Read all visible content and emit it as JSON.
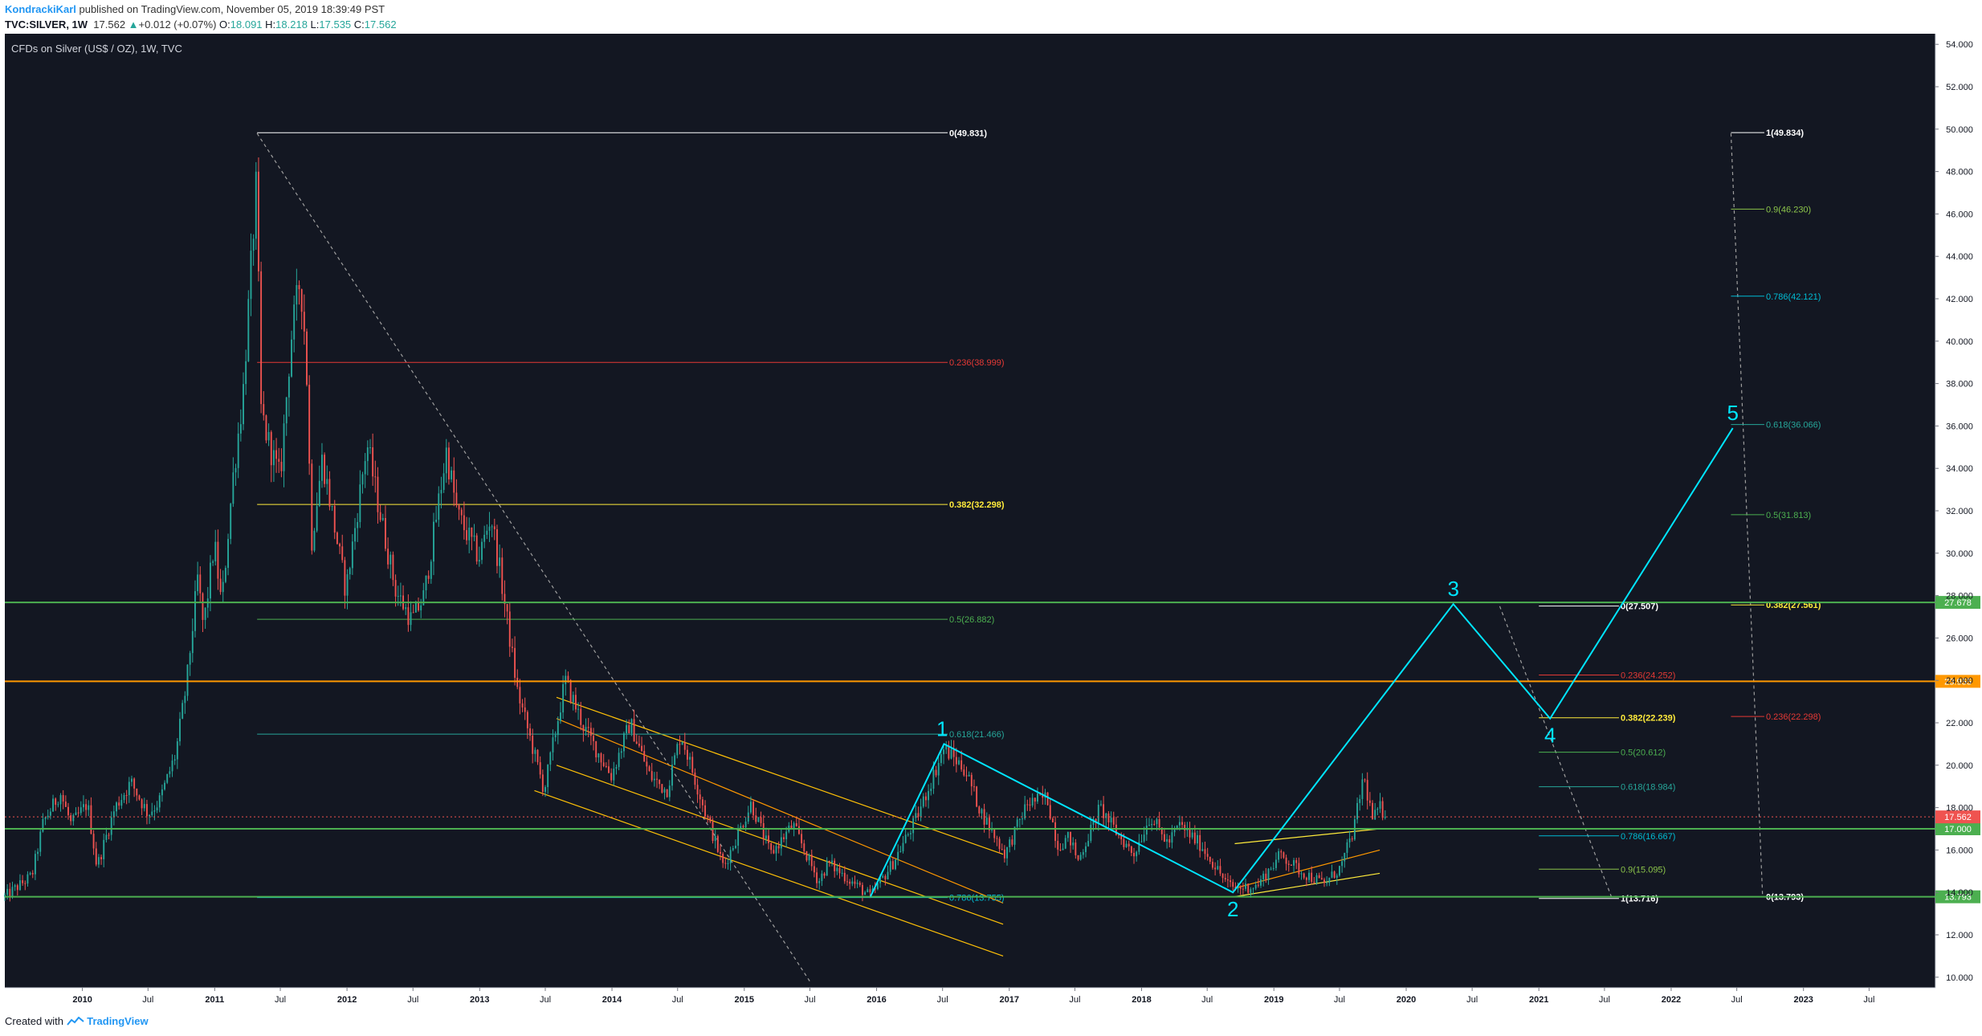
{
  "header": {
    "author": "KondrackiKarl",
    "published_text": " published on TradingView.com, November 05, 2019 18:39:49 PST",
    "symbol": "TVC:SILVER, 1W",
    "last": "17.562",
    "change_arrow": "▲",
    "change": "+0.012 (+0.07%)",
    "o_label": "O:",
    "o_value": "18.091",
    "h_label": "H:",
    "h_value": "18.218",
    "l_label": "L:",
    "l_value": "17.535",
    "c_label": "C:",
    "c_value": "17.562"
  },
  "footer": {
    "created_with": "Created with",
    "brand": "TradingView"
  },
  "colors": {
    "background": "#131722",
    "up": "#26a69a",
    "down": "#ef5350",
    "wave": "#00e5ff",
    "green_level": "#4caf50",
    "orange_level": "#ff9800",
    "yellow": "#ffeb3b",
    "white": "#ffffff"
  },
  "chart_data": {
    "type": "candlestick",
    "title": "CFDs on Silver (US$ / OZ), 1W, TVC",
    "x_axis": {
      "type": "date",
      "range": [
        "2009-06-01",
        "2023-12-31"
      ],
      "ticks": [
        {
          "label": "2010",
          "date": "2010-01-01"
        },
        {
          "label": "Jul",
          "date": "2010-07-01"
        },
        {
          "label": "2011",
          "date": "2011-01-01"
        },
        {
          "label": "Jul",
          "date": "2011-07-01"
        },
        {
          "label": "2012",
          "date": "2012-01-01"
        },
        {
          "label": "Jul",
          "date": "2012-07-01"
        },
        {
          "label": "2013",
          "date": "2013-01-01"
        },
        {
          "label": "Jul",
          "date": "2013-07-01"
        },
        {
          "label": "2014",
          "date": "2014-01-01"
        },
        {
          "label": "Jul",
          "date": "2014-07-01"
        },
        {
          "label": "2015",
          "date": "2015-01-01"
        },
        {
          "label": "Jul",
          "date": "2015-07-01"
        },
        {
          "label": "2016",
          "date": "2016-01-01"
        },
        {
          "label": "Jul",
          "date": "2016-07-01"
        },
        {
          "label": "2017",
          "date": "2017-01-01"
        },
        {
          "label": "Jul",
          "date": "2017-07-01"
        },
        {
          "label": "2018",
          "date": "2018-01-01"
        },
        {
          "label": "Jul",
          "date": "2018-07-01"
        },
        {
          "label": "2019",
          "date": "2019-01-01"
        },
        {
          "label": "Jul",
          "date": "2019-07-01"
        },
        {
          "label": "2020",
          "date": "2020-01-01"
        },
        {
          "label": "Jul",
          "date": "2020-07-01"
        },
        {
          "label": "2021",
          "date": "2021-01-01"
        },
        {
          "label": "Jul",
          "date": "2021-07-01"
        },
        {
          "label": "2022",
          "date": "2022-01-01"
        },
        {
          "label": "Jul",
          "date": "2022-07-01"
        },
        {
          "label": "2023",
          "date": "2023-01-01"
        },
        {
          "label": "Jul",
          "date": "2023-07-01"
        }
      ]
    },
    "y_axis": {
      "range": [
        9.5,
        54.5
      ],
      "ticks": [
        "54.000",
        "52.000",
        "50.000",
        "48.000",
        "46.000",
        "44.000",
        "42.000",
        "40.000",
        "38.000",
        "36.000",
        "34.000",
        "32.000",
        "30.000",
        "28.000",
        "26.000",
        "24.000",
        "22.000",
        "20.000",
        "18.000",
        "16.000",
        "14.000",
        "12.000",
        "10.000"
      ]
    },
    "price_path": [
      [
        "2009-06-01",
        13.8
      ],
      [
        "2009-08-15",
        14.8
      ],
      [
        "2009-09-15",
        17.3
      ],
      [
        "2009-11-01",
        18.7
      ],
      [
        "2009-12-01",
        17.2
      ],
      [
        "2010-01-15",
        18.2
      ],
      [
        "2010-02-10",
        15.2
      ],
      [
        "2010-04-01",
        18.0
      ],
      [
        "2010-05-15",
        19.2
      ],
      [
        "2010-07-01",
        17.7
      ],
      [
        "2010-08-01",
        18.3
      ],
      [
        "2010-09-15",
        20.5
      ],
      [
        "2010-10-15",
        23.8
      ],
      [
        "2010-11-15",
        28.8
      ],
      [
        "2010-12-01",
        26.5
      ],
      [
        "2010-12-31",
        30.5
      ],
      [
        "2011-01-20",
        27.5
      ],
      [
        "2011-02-20",
        33.5
      ],
      [
        "2011-03-20",
        37.5
      ],
      [
        "2011-04-28",
        48.0
      ],
      [
        "2011-05-06",
        37.0
      ],
      [
        "2011-05-25",
        35.5
      ],
      [
        "2011-06-30",
        33.5
      ],
      [
        "2011-07-30",
        40.0
      ],
      [
        "2011-08-25",
        43.0
      ],
      [
        "2011-09-10",
        39.5
      ],
      [
        "2011-09-25",
        30.5
      ],
      [
        "2011-10-25",
        34.5
      ],
      [
        "2011-12-29",
        28.2
      ],
      [
        "2012-02-25",
        35.2
      ],
      [
        "2012-03-25",
        32.5
      ],
      [
        "2012-05-15",
        28.2
      ],
      [
        "2012-06-28",
        26.8
      ],
      [
        "2012-08-01",
        28.0
      ],
      [
        "2012-10-01",
        34.8
      ],
      [
        "2012-11-01",
        31.8
      ],
      [
        "2012-12-30",
        29.8
      ],
      [
        "2013-02-01",
        31.8
      ],
      [
        "2013-03-01",
        28.8
      ],
      [
        "2013-04-15",
        23.5
      ],
      [
        "2013-06-28",
        18.8
      ],
      [
        "2013-08-25",
        24.0
      ],
      [
        "2013-10-15",
        21.8
      ],
      [
        "2013-12-30",
        19.5
      ],
      [
        "2014-02-20",
        22.0
      ],
      [
        "2014-04-15",
        19.5
      ],
      [
        "2014-06-01",
        18.8
      ],
      [
        "2014-07-10",
        21.5
      ],
      [
        "2014-09-15",
        17.8
      ],
      [
        "2014-11-05",
        15.2
      ],
      [
        "2015-01-20",
        18.2
      ],
      [
        "2015-03-15",
        15.8
      ],
      [
        "2015-05-15",
        17.2
      ],
      [
        "2015-07-25",
        14.5
      ],
      [
        "2015-08-20",
        15.4
      ],
      [
        "2015-12-15",
        13.8
      ],
      [
        "2016-02-15",
        15.4
      ],
      [
        "2016-04-20",
        17.5
      ],
      [
        "2016-07-05",
        20.8
      ],
      [
        "2016-09-01",
        19.8
      ],
      [
        "2016-10-15",
        17.8
      ],
      [
        "2016-12-20",
        15.8
      ],
      [
        "2017-02-20",
        18.2
      ],
      [
        "2017-04-15",
        18.5
      ],
      [
        "2017-05-15",
        16.2
      ],
      [
        "2017-06-15",
        16.6
      ],
      [
        "2017-07-10",
        15.5
      ],
      [
        "2017-09-08",
        18.0
      ],
      [
        "2017-10-25",
        16.8
      ],
      [
        "2017-12-10",
        15.8
      ],
      [
        "2018-01-25",
        17.6
      ],
      [
        "2018-03-15",
        16.3
      ],
      [
        "2018-04-15",
        17.2
      ],
      [
        "2018-06-15",
        16.2
      ],
      [
        "2018-08-25",
        14.4
      ],
      [
        "2018-09-15",
        14.2
      ],
      [
        "2018-11-15",
        14.3
      ],
      [
        "2019-01-20",
        15.8
      ],
      [
        "2019-03-15",
        15.0
      ],
      [
        "2019-05-20",
        14.4
      ],
      [
        "2019-07-05",
        15.2
      ],
      [
        "2019-08-10",
        17.0
      ],
      [
        "2019-09-05",
        19.5
      ],
      [
        "2019-10-01",
        17.4
      ],
      [
        "2019-10-20",
        18.0
      ],
      [
        "2019-11-05",
        17.56
      ]
    ],
    "last_price": 17.562,
    "horizontal_levels": [
      {
        "price": 27.678,
        "label": "27.678",
        "color": "#4caf50"
      },
      {
        "price": 23.955,
        "label": "23.955",
        "color": "#ff9800"
      },
      {
        "price": 17.0,
        "label": "17.000",
        "color": "#4caf50"
      },
      {
        "price": 13.793,
        "label": "13.793",
        "color": "#4caf50"
      }
    ],
    "fib_sets": [
      {
        "x1": "2011-04-28",
        "x2": "2016-07-15",
        "levels": [
          {
            "price": 49.831,
            "label": "0(49.831)",
            "color": "#ffffff",
            "bold": true
          },
          {
            "price": 38.999,
            "label": "0.236(38.999)",
            "color": "#e53935"
          },
          {
            "price": 32.298,
            "label": "0.382(32.298)",
            "color": "#ffeb3b",
            "bold": true
          },
          {
            "price": 26.882,
            "label": "0.5(26.882)",
            "color": "#4caf50"
          },
          {
            "price": 21.466,
            "label": "0.618(21.466)",
            "color": "#26a69a"
          },
          {
            "price": 13.755,
            "label": "0.786(13.755)",
            "color": "#00bcd4"
          }
        ]
      },
      {
        "x1": "2021-01-01",
        "x2": "2021-08-10",
        "levels": [
          {
            "price": 27.507,
            "label": "0(27.507)",
            "color": "#ffffff",
            "bold": true
          },
          {
            "price": 24.252,
            "label": "0.236(24.252)",
            "color": "#e53935"
          },
          {
            "price": 22.239,
            "label": "0.382(22.239)",
            "color": "#ffeb3b",
            "bold": true
          },
          {
            "price": 20.612,
            "label": "0.5(20.612)",
            "color": "#4caf50"
          },
          {
            "price": 18.984,
            "label": "0.618(18.984)",
            "color": "#26a69a"
          },
          {
            "price": 16.667,
            "label": "0.786(16.667)",
            "color": "#00bcd4"
          },
          {
            "price": 15.095,
            "label": "0.9(15.095)",
            "color": "#8bc34a"
          },
          {
            "price": 13.716,
            "label": "1(13.716)",
            "color": "#ffffff",
            "bold": true
          }
        ]
      },
      {
        "x1": "2022-06-15",
        "x2": "2022-09-15",
        "levels": [
          {
            "price": 49.834,
            "label": "1(49.834)",
            "color": "#ffffff",
            "bold": true
          },
          {
            "price": 46.23,
            "label": "0.9(46.230)",
            "color": "#8bc34a"
          },
          {
            "price": 42.121,
            "label": "0.786(42.121)",
            "color": "#00bcd4"
          },
          {
            "price": 36.066,
            "label": "0.618(36.066)",
            "color": "#26a69a"
          },
          {
            "price": 31.813,
            "label": "0.5(31.813)",
            "color": "#4caf50"
          },
          {
            "price": 27.561,
            "label": "0.382(27.561)",
            "color": "#ffeb3b",
            "bold": true
          },
          {
            "price": 22.298,
            "label": "0.236(22.298)",
            "color": "#e53935"
          },
          {
            "price": 13.793,
            "label": "0(13.793)",
            "color": "#ffffff",
            "bold": true
          }
        ]
      }
    ],
    "diagonal_lines": [
      {
        "p1": [
          "2011-04-28",
          49.8
        ],
        "p2": [
          "2015-07-01",
          9.8
        ],
        "color": "#9e9e9e",
        "dashed": true
      },
      {
        "p1": [
          "2020-09-15",
          27.5
        ],
        "p2": [
          "2021-07-20",
          13.8
        ],
        "color": "#9e9e9e",
        "dashed": true
      },
      {
        "p1": [
          "2022-06-15",
          49.8
        ],
        "p2": [
          "2022-09-10",
          13.9
        ],
        "color": "#9e9e9e",
        "dashed": true
      },
      {
        "p1": [
          "2013-08-01",
          23.2
        ],
        "p2": [
          "2016-12-15",
          15.8
        ],
        "color": "#ffc107"
      },
      {
        "p1": [
          "2013-08-01",
          20.0
        ],
        "p2": [
          "2016-12-15",
          12.5
        ],
        "color": "#ffc107"
      },
      {
        "p1": [
          "2013-06-01",
          18.8
        ],
        "p2": [
          "2016-12-15",
          11.0
        ],
        "color": "#ffc107"
      },
      {
        "p1": [
          "2013-08-01",
          22.2
        ],
        "p2": [
          "2016-12-15",
          13.5
        ],
        "color": "#ff9800"
      },
      {
        "p1": [
          "2018-09-15",
          16.3
        ],
        "p2": [
          "2019-10-20",
          17.0
        ],
        "color": "#ffeb3b"
      },
      {
        "p1": [
          "2018-09-15",
          13.8
        ],
        "p2": [
          "2019-10-20",
          14.9
        ],
        "color": "#ffeb3b"
      },
      {
        "p1": [
          "2018-09-15",
          14.2
        ],
        "p2": [
          "2019-10-20",
          16.0
        ],
        "color": "#ff9800"
      }
    ],
    "wave_path": [
      [
        "2015-12-15",
        13.8
      ],
      [
        "2016-07-05",
        21.0
      ],
      [
        "2018-09-10",
        14.0
      ],
      [
        "2020-05-10",
        27.6
      ],
      [
        "2021-02-01",
        22.2
      ],
      [
        "2022-06-20",
        35.9
      ]
    ],
    "wave_labels": [
      {
        "label": "1",
        "date": "2016-06-30",
        "price": 21.0
      },
      {
        "label": "2",
        "date": "2018-09-10",
        "price": 14.0
      },
      {
        "label": "3",
        "date": "2020-05-10",
        "price": 27.6
      },
      {
        "label": "4",
        "date": "2021-02-01",
        "price": 22.2
      },
      {
        "label": "5",
        "date": "2022-06-20",
        "price": 35.9
      }
    ]
  }
}
